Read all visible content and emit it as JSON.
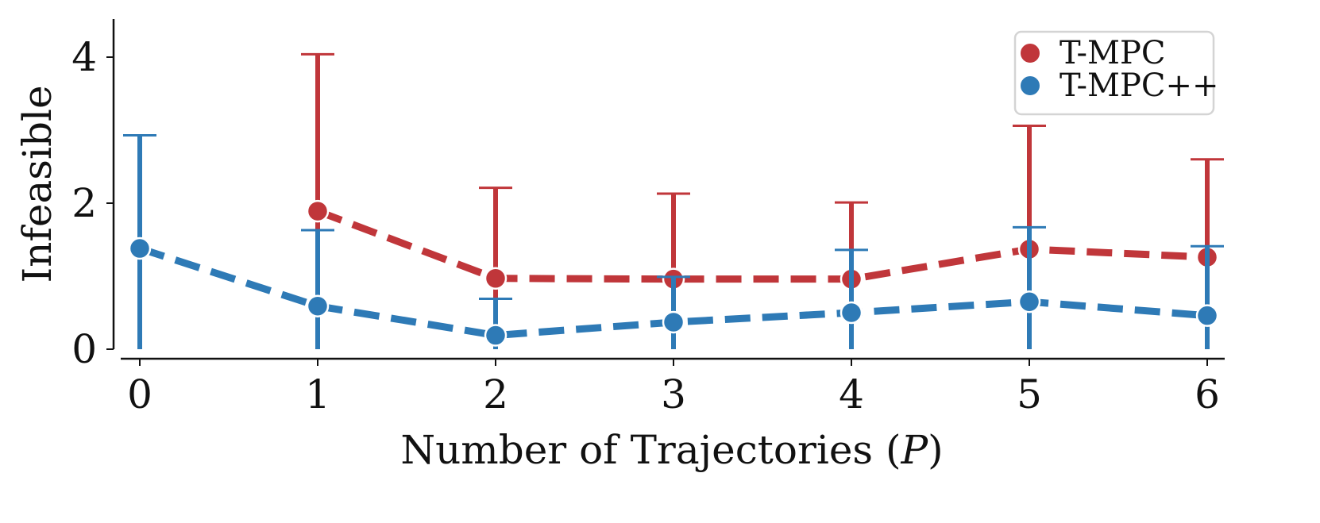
{
  "chart_data": {
    "type": "line",
    "title": "",
    "xlabel": "Number of Trajectories (",
    "xlabel_var": "P",
    "xlabel_close": ")",
    "ylabel": "Infeasible",
    "xlim": [
      -0.15,
      6.15
    ],
    "ylim": [
      0,
      4.5
    ],
    "xticks": [
      "0",
      "1",
      "2",
      "3",
      "4",
      "5",
      "6"
    ],
    "yticks": [
      "0",
      "2",
      "4"
    ],
    "grid": false,
    "legend_position": "top-right",
    "series": [
      {
        "name": "T-MPC",
        "color": "#c0363a",
        "x": [
          1,
          2,
          3,
          4,
          5,
          6
        ],
        "y": [
          1.89,
          0.97,
          0.96,
          0.96,
          1.37,
          1.26
        ],
        "error_upper": [
          4.04,
          2.21,
          2.13,
          2.01,
          3.06,
          2.6
        ],
        "error_lower": [
          0,
          0,
          0,
          0,
          0,
          0
        ]
      },
      {
        "name": "T-MPC++",
        "color": "#2e7ab6",
        "x": [
          0,
          1,
          2,
          3,
          4,
          5,
          6
        ],
        "y": [
          1.38,
          0.59,
          0.19,
          0.37,
          0.5,
          0.65,
          0.46
        ],
        "error_upper": [
          2.93,
          1.63,
          0.69,
          0.99,
          1.36,
          1.67,
          1.41
        ],
        "error_lower": [
          0,
          0,
          0,
          0,
          0,
          0,
          0
        ]
      }
    ]
  }
}
